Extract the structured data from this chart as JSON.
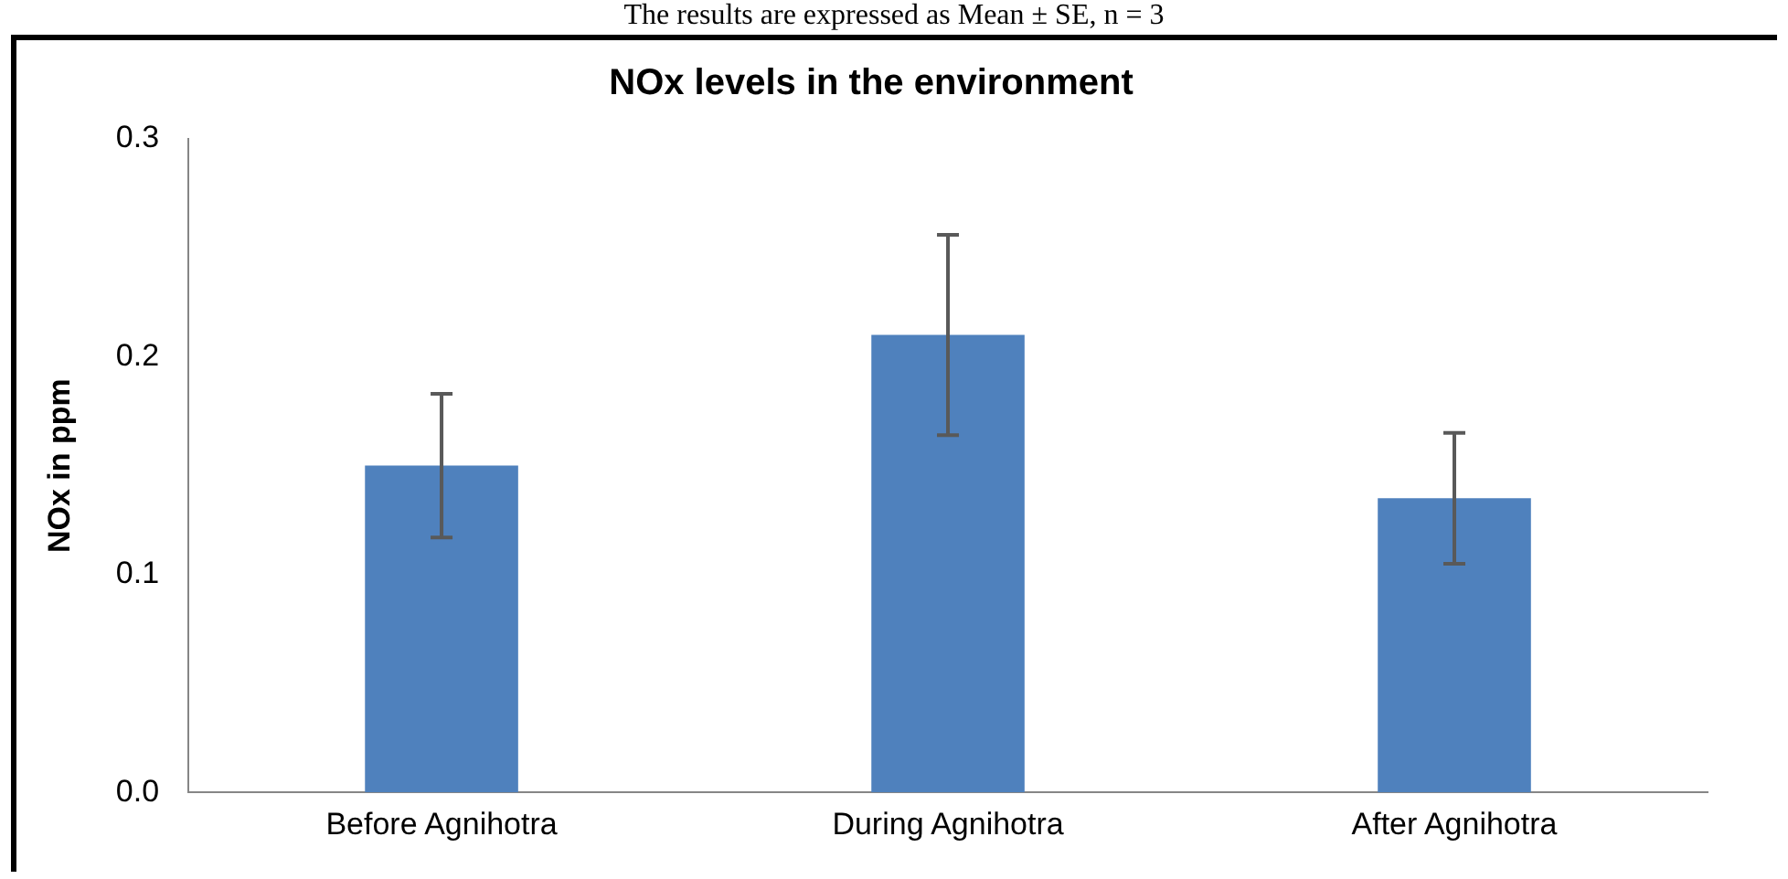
{
  "chart_data": {
    "type": "bar",
    "title": "NOx levels in the environment",
    "ylabel": "NOx in ppm",
    "annotations": [
      "The results are expressed as Mean ± SE, n = 3"
    ],
    "categories": [
      "Before Agnihotra",
      "During Agnihotra",
      "After Agnihotra"
    ],
    "values": [
      0.15,
      0.21,
      0.135
    ],
    "errors": [
      0.033,
      0.046,
      0.03
    ],
    "color": "#4f81bd",
    "ylim": [
      0,
      0.3
    ],
    "yticks": [
      {
        "value": 0,
        "label": "0.0"
      },
      {
        "value": 0.1,
        "label": "0.1"
      },
      {
        "value": 0.2,
        "label": "0.2"
      },
      {
        "value": 0.3,
        "label": "0.3"
      }
    ],
    "grid": false,
    "legend": false
  }
}
